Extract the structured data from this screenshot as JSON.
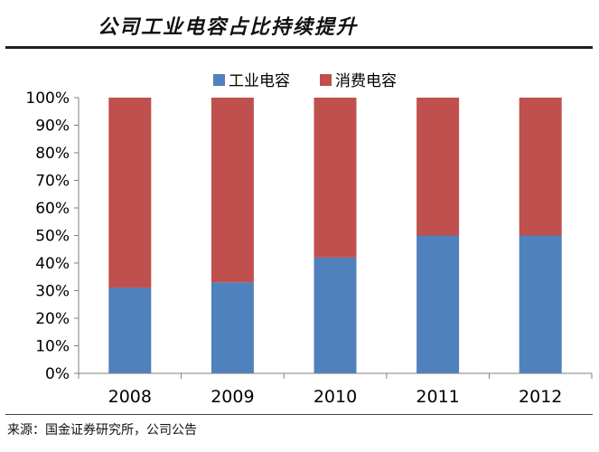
{
  "header": {
    "title": "公司工业电容占比持续提升"
  },
  "footer": {
    "source": "来源：国金证券研究所，公司公告"
  },
  "colors": {
    "industrial": "#4f81bd",
    "consumer": "#c0504d"
  },
  "chart_data": {
    "type": "bar",
    "stacked": true,
    "title": "公司工业电容占比持续提升",
    "categories": [
      "2008",
      "2009",
      "2010",
      "2011",
      "2012"
    ],
    "series": [
      {
        "name": "工业电容",
        "color": "#4f81bd",
        "values": [
          31,
          33,
          42,
          50,
          50
        ]
      },
      {
        "name": "消费电容",
        "color": "#c0504d",
        "values": [
          69,
          67,
          58,
          50,
          50
        ]
      }
    ],
    "yticks": [
      "0%",
      "10%",
      "20%",
      "30%",
      "40%",
      "50%",
      "60%",
      "70%",
      "80%",
      "90%",
      "100%"
    ],
    "ylim": [
      0,
      100
    ],
    "xlabel": "",
    "ylabel": "",
    "legend": "top-center",
    "grid": false
  }
}
